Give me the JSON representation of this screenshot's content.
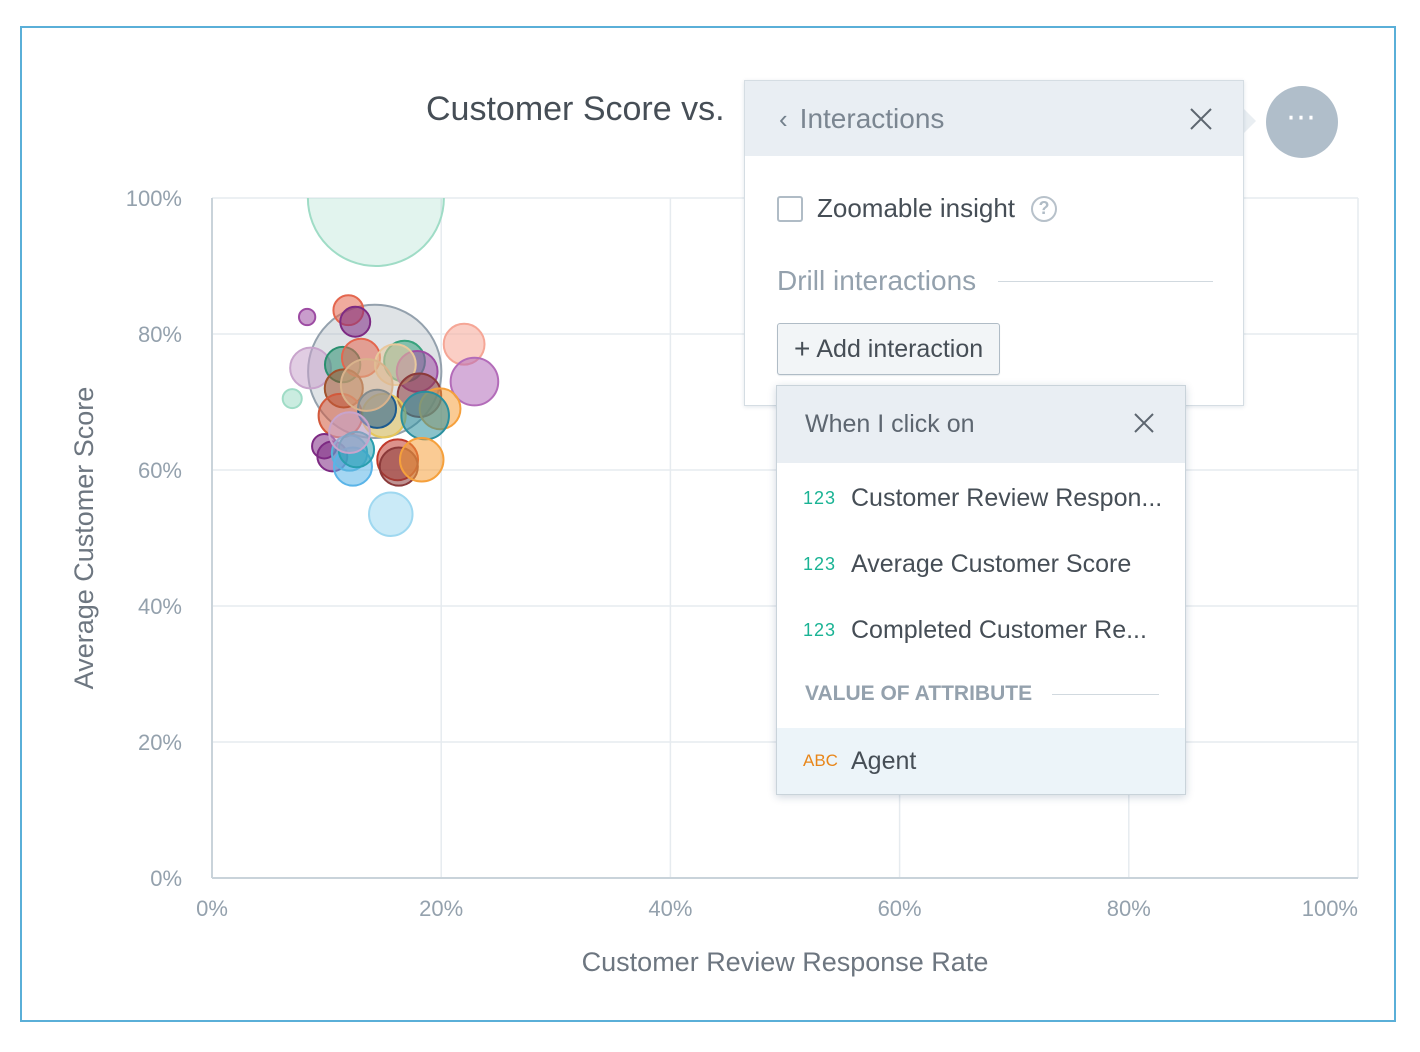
{
  "chart_data": {
    "type": "scatter",
    "title": "Customer Score vs.",
    "xlabel": "Customer Review Response Rate",
    "ylabel": "Average Customer Score",
    "xlim": [
      0,
      100
    ],
    "ylim": [
      0,
      100
    ],
    "x_ticks": [
      "0%",
      "20%",
      "40%",
      "60%",
      "80%",
      "100%"
    ],
    "y_ticks": [
      "0%",
      "20%",
      "40%",
      "60%",
      "80%",
      "100%"
    ],
    "grid": true,
    "points": [
      {
        "x": 14.3,
        "y": 100,
        "size": 1.0,
        "color": "#9fdcc6"
      },
      {
        "x": 14.2,
        "y": 74.5,
        "size": 0.98,
        "color": "#94a1ad"
      },
      {
        "x": 11.9,
        "y": 83.5,
        "size": 0.22,
        "color": "#e4664e"
      },
      {
        "x": 8.3,
        "y": 82.5,
        "size": 0.12,
        "color": "#9d4ca3"
      },
      {
        "x": 12.5,
        "y": 81.8,
        "size": 0.22,
        "color": "#7d2a83"
      },
      {
        "x": 22.0,
        "y": 78.5,
        "size": 0.3,
        "color": "#f5a696"
      },
      {
        "x": 22.9,
        "y": 73.0,
        "size": 0.35,
        "color": "#b36cb9"
      },
      {
        "x": 8.6,
        "y": 75.0,
        "size": 0.3,
        "color": "#c8a4cc"
      },
      {
        "x": 11.4,
        "y": 75.5,
        "size": 0.26,
        "color": "#2a8f6f"
      },
      {
        "x": 16.8,
        "y": 76.0,
        "size": 0.3,
        "color": "#38a37d"
      },
      {
        "x": 17.9,
        "y": 74.5,
        "size": 0.3,
        "color": "#9d4ca3"
      },
      {
        "x": 13.0,
        "y": 76.5,
        "size": 0.28,
        "color": "#e4664e"
      },
      {
        "x": 16.0,
        "y": 75.5,
        "size": 0.3,
        "color": "#e9c89c"
      },
      {
        "x": 11.5,
        "y": 72.0,
        "size": 0.28,
        "color": "#a0522d"
      },
      {
        "x": 18.1,
        "y": 71.0,
        "size": 0.32,
        "color": "#8b3a3a"
      },
      {
        "x": 19.9,
        "y": 69.0,
        "size": 0.3,
        "color": "#f5a03c"
      },
      {
        "x": 11.2,
        "y": 68.0,
        "size": 0.32,
        "color": "#d2593c"
      },
      {
        "x": 15.0,
        "y": 68.0,
        "size": 0.32,
        "color": "#e6c65a"
      },
      {
        "x": 18.6,
        "y": 68.0,
        "size": 0.35,
        "color": "#2a8f9f"
      },
      {
        "x": 14.4,
        "y": 69.0,
        "size": 0.28,
        "color": "#1d5b8f"
      },
      {
        "x": 7.0,
        "y": 70.5,
        "size": 0.14,
        "color": "#9fdcc6"
      },
      {
        "x": 9.8,
        "y": 63.5,
        "size": 0.18,
        "color": "#7d2a83"
      },
      {
        "x": 10.5,
        "y": 62.0,
        "size": 0.22,
        "color": "#7d2a83"
      },
      {
        "x": 12.0,
        "y": 62.5,
        "size": 0.26,
        "color": "#5ab4d8"
      },
      {
        "x": 12.3,
        "y": 60.5,
        "size": 0.28,
        "color": "#5ab4e8"
      },
      {
        "x": 12.6,
        "y": 63.0,
        "size": 0.26,
        "color": "#2a9faf"
      },
      {
        "x": 16.2,
        "y": 61.5,
        "size": 0.3,
        "color": "#c0392b"
      },
      {
        "x": 16.3,
        "y": 60.5,
        "size": 0.28,
        "color": "#8b3a3a"
      },
      {
        "x": 18.3,
        "y": 61.5,
        "size": 0.32,
        "color": "#f5a03c"
      },
      {
        "x": 15.6,
        "y": 53.5,
        "size": 0.32,
        "color": "#9fd8f0"
      },
      {
        "x": 13.5,
        "y": 72.5,
        "size": 0.38,
        "color": "#d9b38c"
      },
      {
        "x": 12.0,
        "y": 65.5,
        "size": 0.3,
        "color": "#c8a4cc"
      }
    ]
  },
  "more_button": {
    "label": "⋯"
  },
  "interactions_panel": {
    "back_icon": "chevron-left-icon",
    "title": "Interactions",
    "close_icon": "close-icon",
    "zoomable_label": "Zoomable insight",
    "zoomable_checked": false,
    "help_icon": "question-circle-icon",
    "drill_title": "Drill interactions",
    "add_button_label": "Add interaction",
    "plus_icon": "plus-icon"
  },
  "dropdown": {
    "title": "When I click on",
    "items": [
      {
        "badge": "123",
        "label": "Customer Review Respon..."
      },
      {
        "badge": "123",
        "label": "Average Customer Score"
      },
      {
        "badge": "123",
        "label": "Completed Customer Re..."
      }
    ],
    "section_title": "VALUE OF ATTRIBUTE",
    "attributes": [
      {
        "badge": "ABC",
        "label": "Agent",
        "selected": true
      }
    ]
  },
  "colors": {
    "frame_border": "#5aafd8",
    "numeric_badge": "#1ab394",
    "attribute_badge": "#e8861a",
    "header_bg": "#e9eef3"
  }
}
